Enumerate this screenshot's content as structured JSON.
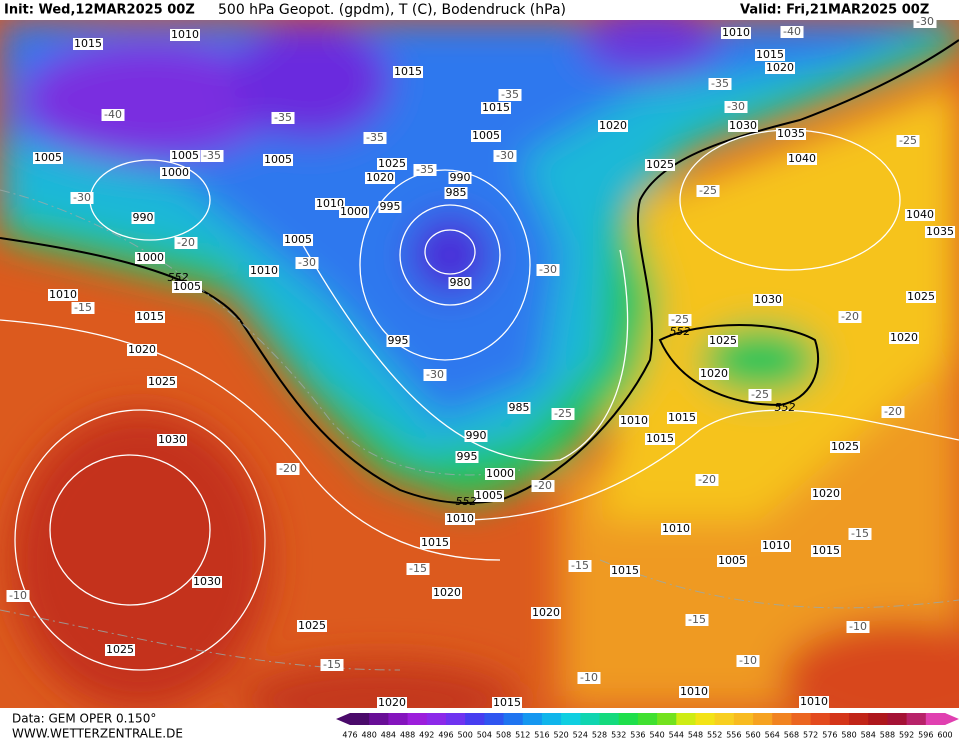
{
  "header": {
    "init": "Init: Wed,12MAR2025 00Z",
    "title": "500 hPa Geopot. (gpdm), T (C), Bodendruck (hPa)",
    "valid": "Valid: Fri,21MAR2025 00Z"
  },
  "footer": {
    "data": "Data: GEM OPER 0.150°",
    "site": "WWW.WETTERZENTRALE.DE"
  },
  "colorbar": {
    "labels": [
      476,
      480,
      484,
      488,
      492,
      496,
      500,
      504,
      508,
      512,
      516,
      520,
      524,
      528,
      532,
      536,
      540,
      544,
      548,
      552,
      556,
      560,
      564,
      568,
      572,
      576,
      580,
      584,
      588,
      592,
      596,
      600
    ]
  },
  "map": {
    "isobar_labels": [
      "1015",
      "1010",
      "1015",
      "1010",
      "1015",
      "1020",
      "1005",
      "1005",
      "1000",
      "1005",
      "990",
      "1000",
      "1005",
      "1010",
      "1015",
      "1020",
      "1025",
      "1030",
      "1030",
      "1025",
      "1025",
      "1020",
      "1015",
      "1010",
      "1005",
      "1010",
      "1000",
      "995",
      "1025",
      "1020",
      "990",
      "985",
      "980",
      "995",
      "985",
      "990",
      "995",
      "1000",
      "1005",
      "1010",
      "1015",
      "1020",
      "1020",
      "1015",
      "1010",
      "1005",
      "1010",
      "1015",
      "1010",
      "1015",
      "1015",
      "1020",
      "1025",
      "1030",
      "1025",
      "1020",
      "1025",
      "1020",
      "1040",
      "1035",
      "1040",
      "1035",
      "1030",
      "1025",
      "1020",
      "1015",
      "1005",
      "1010",
      "1010"
    ],
    "temperature_labels": [
      "-40",
      "-35",
      "-35",
      "-35",
      "-35",
      "-35",
      "-30",
      "-30",
      "-20",
      "-30",
      "-30",
      "-30",
      "-25",
      "-20",
      "-15",
      "-20",
      "-15",
      "-15",
      "-10",
      "-15",
      "-10",
      "-15",
      "-10",
      "-10",
      "-15",
      "-20",
      "-20",
      "-25",
      "-20",
      "-25",
      "-25",
      "-25",
      "-30",
      "-35",
      "-40",
      "-30"
    ],
    "contour_labels": [
      "552",
      "552",
      "552",
      "552"
    ]
  }
}
